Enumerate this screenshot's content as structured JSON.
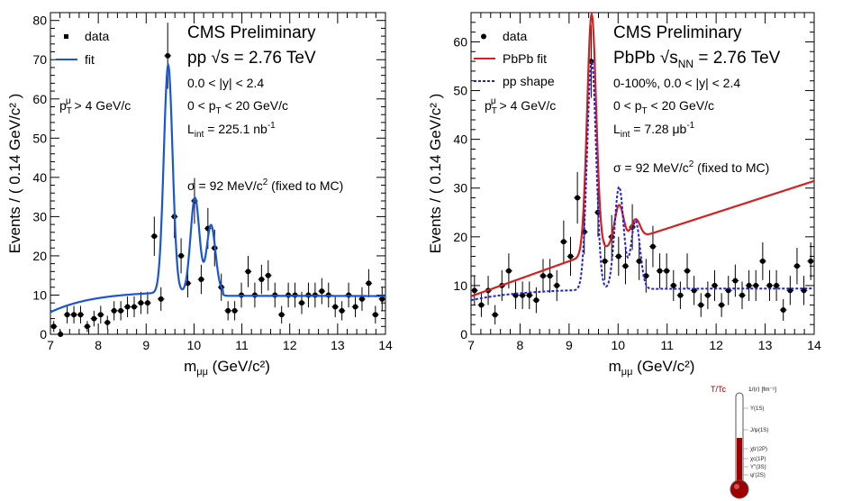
{
  "chart_data": [
    {
      "type": "scatter",
      "xlabel": "m",
      "xlabel_sub": "μμ",
      "xlabel_unit": "(GeV/c²)",
      "ylabel": "Events / ( 0.14 GeV/c² )",
      "xlim": [
        7,
        14
      ],
      "ylim": [
        0,
        82
      ],
      "xticks": [
        7,
        8,
        9,
        10,
        11,
        12,
        13,
        14
      ],
      "yticks": [
        0,
        10,
        20,
        30,
        40,
        50,
        60,
        70,
        80
      ],
      "legend": [
        {
          "label": "data",
          "marker": "square",
          "color": "#000000"
        },
        {
          "label": "fit",
          "line": "solid",
          "color": "#1a55d6"
        }
      ],
      "texts": {
        "header": "CMS Preliminary",
        "energy": "pp √s = 2.76 TeV",
        "rapidity": "0.0 < |y| < 2.4",
        "pt": "0 < pT < 20 GeV/c",
        "lumi": "Lint = 225.1 nb⁻¹",
        "muon_cut": "pTμ > 4 GeV/c",
        "sigma": "σ = 92 MeV/c² (fixed to MC)"
      },
      "series": [
        {
          "name": "data",
          "x": [
            7.07,
            7.21,
            7.35,
            7.49,
            7.63,
            7.77,
            7.91,
            8.05,
            8.19,
            8.33,
            8.47,
            8.61,
            8.75,
            8.89,
            9.03,
            9.17,
            9.31,
            9.45,
            9.59,
            9.73,
            9.87,
            10.01,
            10.15,
            10.29,
            10.43,
            10.57,
            10.71,
            10.85,
            10.99,
            11.13,
            11.27,
            11.41,
            11.55,
            11.69,
            11.83,
            11.97,
            12.11,
            12.25,
            12.39,
            12.53,
            12.67,
            12.81,
            12.95,
            13.09,
            13.23,
            13.37,
            13.51,
            13.65,
            13.79,
            13.93
          ],
          "y": [
            2,
            0,
            5,
            5,
            5,
            2,
            4,
            5,
            3,
            6,
            6,
            7,
            7,
            8,
            8,
            25,
            9,
            71,
            30,
            20,
            13,
            34,
            14,
            27,
            22,
            12,
            6,
            6,
            10,
            16,
            10,
            14,
            15,
            10,
            5,
            10,
            10,
            8,
            10,
            10,
            11,
            10,
            7,
            6,
            10,
            7,
            9,
            13,
            5,
            9
          ]
        },
        {
          "name": "fit",
          "model": "pp_fit"
        }
      ]
    },
    {
      "type": "scatter",
      "xlabel": "m",
      "xlabel_sub": "μμ",
      "xlabel_unit": "(GeV/c²)",
      "ylabel": "Events / ( 0.14 GeV/c² )",
      "xlim": [
        7,
        14
      ],
      "ylim": [
        0,
        66
      ],
      "xticks": [
        7,
        8,
        9,
        10,
        11,
        12,
        13,
        14
      ],
      "yticks": [
        0,
        10,
        20,
        30,
        40,
        50,
        60
      ],
      "legend": [
        {
          "label": "data",
          "marker": "circle",
          "color": "#000000"
        },
        {
          "label": "PbPb fit",
          "line": "solid",
          "color": "#d42020"
        },
        {
          "label": "pp shape",
          "line": "dashed",
          "color": "#2222cc"
        }
      ],
      "texts": {
        "header": "CMS Preliminary",
        "energy": "PbPb √sNN = 2.76 TeV",
        "centrality": "0-100%, 0.0 < |y| < 2.4",
        "pt": "0 < pT < 20 GeV/c",
        "lumi": "Lint = 7.28 μb⁻¹",
        "muon_cut": "pTμ > 4 GeV/c",
        "sigma": "σ = 92 MeV/c² (fixed to MC)"
      },
      "series": [
        {
          "name": "data",
          "x": [
            7.07,
            7.21,
            7.35,
            7.49,
            7.63,
            7.77,
            7.91,
            8.05,
            8.19,
            8.33,
            8.47,
            8.61,
            8.75,
            8.89,
            9.03,
            9.17,
            9.31,
            9.45,
            9.59,
            9.73,
            9.87,
            10.01,
            10.15,
            10.29,
            10.43,
            10.57,
            10.71,
            10.85,
            10.99,
            11.13,
            11.27,
            11.41,
            11.55,
            11.69,
            11.83,
            11.97,
            12.11,
            12.25,
            12.39,
            12.53,
            12.67,
            12.81,
            12.95,
            13.09,
            13.23,
            13.37,
            13.51,
            13.65,
            13.79,
            13.93
          ],
          "y": [
            9,
            6,
            9,
            4,
            10,
            13,
            8,
            8,
            8,
            7,
            12,
            12,
            10,
            19,
            16,
            28,
            21,
            56,
            25,
            15,
            20,
            16,
            14,
            22,
            15,
            12,
            18,
            13,
            13,
            10,
            8,
            13,
            9,
            6,
            8,
            10,
            6,
            9,
            11,
            8,
            10,
            10,
            15,
            10,
            10,
            5,
            9,
            14,
            9,
            15
          ]
        },
        {
          "name": "PbPb fit",
          "model": "pbpb_fit"
        },
        {
          "name": "pp shape",
          "model": "pp_shape"
        }
      ]
    }
  ],
  "thermometer": {
    "left_label": "T/Tc",
    "right_header": "1/⟨r⟩ [fm⁻¹]",
    "states": [
      "Υ(1S)",
      "J/ψ(1S)",
      "χb'(2P)",
      "χc(1P)",
      "Υ''(3S)",
      "ψ'(2S)"
    ],
    "fill_color": "#a00000"
  }
}
